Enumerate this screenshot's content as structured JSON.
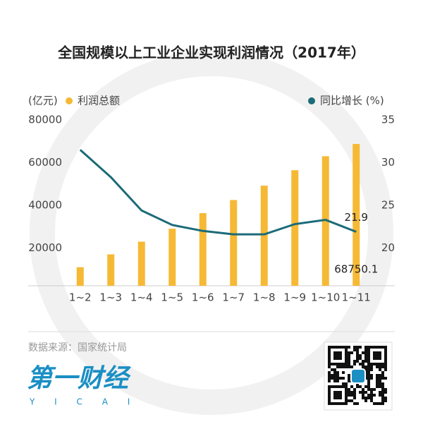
{
  "chart_data": {
    "type": "bar",
    "title": "全国规模以上工业企业实现利润情况（2017年）",
    "ylabel": "(亿元)",
    "categories": [
      "1~2",
      "1~3",
      "1~4",
      "1~5",
      "1~6",
      "1~7",
      "1~8",
      "1~9",
      "1~10",
      "1~11"
    ],
    "series": [
      {
        "name": "利润总额",
        "color": "#f6b935",
        "values": [
          11003,
          17043,
          22985,
          29048,
          36337,
          42482,
          49214,
          56450,
          62995,
          68750.1
        ]
      },
      {
        "name": "同比增长 (%)",
        "color": "#1b6b78",
        "type": "line",
        "axis": "y2",
        "values": [
          31.5,
          28.3,
          24.4,
          22.7,
          22.0,
          21.6,
          21.6,
          22.8,
          23.3,
          21.9
        ]
      }
    ],
    "ylim": [
      0,
      80000
    ],
    "yticks": [
      20000,
      40000,
      60000,
      80000
    ],
    "y2lim": [
      15,
      35
    ],
    "y2ticks": [
      20,
      25,
      30,
      35
    ],
    "source": "数据来源：国家统计局",
    "brand": "第一财经",
    "brand_latin": "Y I C A I"
  }
}
